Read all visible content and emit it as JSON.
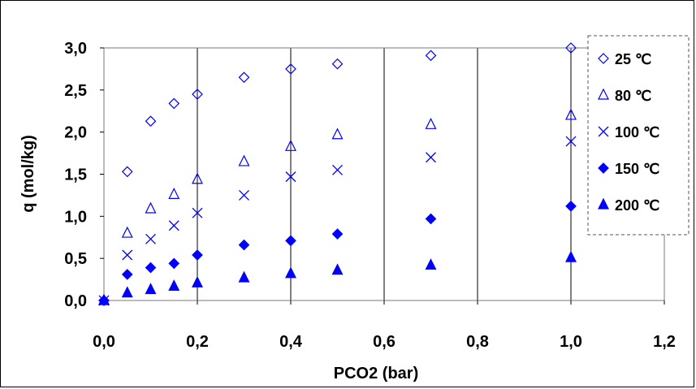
{
  "chart_data": {
    "type": "scatter",
    "title": "",
    "xlabel": "PCO2 (bar)",
    "ylabel": "q (mol/kg)",
    "xlim": [
      0,
      1.2
    ],
    "ylim": [
      0,
      3.0
    ],
    "x_ticks": [
      "0,0",
      "0,2",
      "0,4",
      "0,6",
      "0,8",
      "1,0",
      "1,2"
    ],
    "y_ticks": [
      "0,0",
      "0,5",
      "1,0",
      "1,5",
      "2,0",
      "2,5",
      "3,0"
    ],
    "grid": "vertical",
    "legend_position": "top-right",
    "marker_color": "#0000ff",
    "series": [
      {
        "name": "25 ℃",
        "marker": "diamond-open",
        "x": [
          0,
          0.05,
          0.1,
          0.15,
          0.2,
          0.3,
          0.4,
          0.5,
          0.7,
          1.0
        ],
        "y": [
          0,
          1.53,
          2.13,
          2.34,
          2.45,
          2.65,
          2.75,
          2.81,
          2.91,
          3.0
        ]
      },
      {
        "name": "80 ℃",
        "marker": "triangle-open",
        "x": [
          0,
          0.05,
          0.1,
          0.15,
          0.2,
          0.3,
          0.4,
          0.5,
          0.7,
          1.0
        ],
        "y": [
          0,
          0.8,
          1.09,
          1.26,
          1.44,
          1.65,
          1.83,
          1.97,
          2.09,
          2.2
        ]
      },
      {
        "name": "100 ℃",
        "marker": "x",
        "x": [
          0,
          0.05,
          0.1,
          0.15,
          0.2,
          0.3,
          0.4,
          0.5,
          0.7,
          1.0
        ],
        "y": [
          0,
          0.54,
          0.73,
          0.89,
          1.04,
          1.25,
          1.47,
          1.55,
          1.7,
          1.89
        ]
      },
      {
        "name": "150 ℃",
        "marker": "diamond-filled",
        "x": [
          0,
          0.05,
          0.1,
          0.15,
          0.2,
          0.3,
          0.4,
          0.5,
          0.7,
          1.0
        ],
        "y": [
          0,
          0.31,
          0.39,
          0.44,
          0.54,
          0.66,
          0.71,
          0.79,
          0.97,
          1.12
        ]
      },
      {
        "name": "200 ℃",
        "marker": "triangle-filled",
        "x": [
          0,
          0.05,
          0.1,
          0.15,
          0.2,
          0.3,
          0.4,
          0.5,
          0.7,
          1.0
        ],
        "y": [
          0,
          0.09,
          0.13,
          0.17,
          0.21,
          0.27,
          0.32,
          0.36,
          0.42,
          0.51
        ]
      }
    ]
  }
}
